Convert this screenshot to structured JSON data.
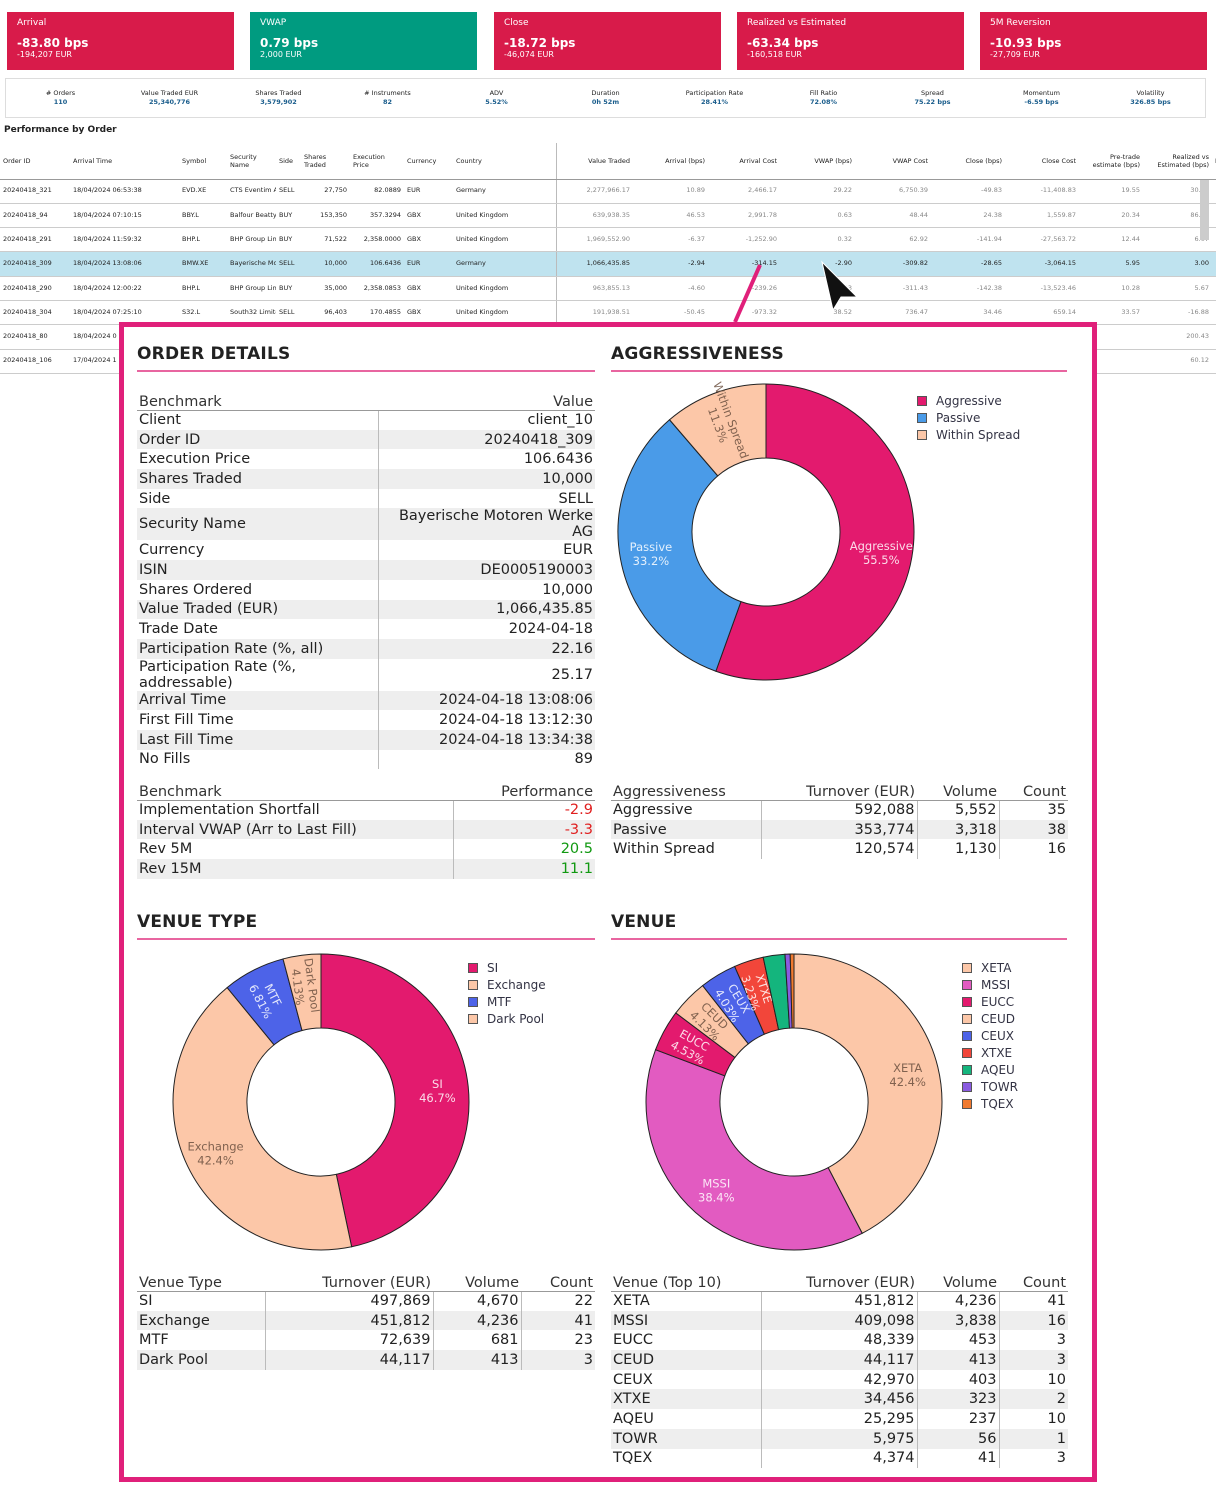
{
  "kpis": [
    {
      "title": "Arrival",
      "value": "-83.80 bps",
      "sub": "-194,207 EUR",
      "color": "#d81b4a"
    },
    {
      "title": "VWAP",
      "value": "0.79 bps",
      "sub": "2,000 EUR",
      "color": "#009b80"
    },
    {
      "title": "Close",
      "value": "-18.72 bps",
      "sub": "-46,074 EUR",
      "color": "#d81b4a"
    },
    {
      "title": "Realized vs Estimated",
      "value": "-63.34 bps",
      "sub": "-160,518 EUR",
      "color": "#d81b4a"
    },
    {
      "title": "5M Reversion",
      "value": "-10.93 bps",
      "sub": "-27,709 EUR",
      "color": "#d81b4a"
    }
  ],
  "stats": [
    {
      "label": "# Orders",
      "value": "110"
    },
    {
      "label": "Value Traded EUR",
      "value": "25,340,776"
    },
    {
      "label": "Shares Traded",
      "value": "3,579,902"
    },
    {
      "label": "# Instruments",
      "value": "82"
    },
    {
      "label": "ADV",
      "value": "5.52%"
    },
    {
      "label": "Duration",
      "value": "0h 52m"
    },
    {
      "label": "Participation Rate",
      "value": "28.41%"
    },
    {
      "label": "Fill Ratio",
      "value": "72.08%"
    },
    {
      "label": "Spread",
      "value": "75.22 bps"
    },
    {
      "label": "Momentum",
      "value": "-6.59 bps"
    },
    {
      "label": "Volatility",
      "value": "326.85 bps"
    }
  ],
  "perf_title": "Performance by Order",
  "order_table": {
    "headers": [
      "Order ID",
      "Arrival Time",
      "Symbol",
      "Security Name",
      "Side",
      "Shares Traded",
      "Execution Price",
      "Currency",
      "Country",
      "Value Traded",
      "Arrival (bps)",
      "Arrival Cost",
      "VWAP (bps)",
      "VWAP Cost",
      "Close (bps)",
      "Close Cost",
      "Pre-trade estimate (bps)",
      "Realized vs Estimated (bps)",
      "Es"
    ],
    "rows": [
      [
        "20240418_321",
        "18/04/2024 06:53:38",
        "EVD.XE",
        "CTS Eventim A..",
        "SELL",
        "27,750",
        "82.0889",
        "EUR",
        "Germany",
        "2,277,966.17",
        "10.89",
        "2,466.17",
        "29.22",
        "6,750.39",
        "-49.83",
        "-11,408.83",
        "19.55",
        "30.39",
        ""
      ],
      [
        "20240418_94",
        "18/04/2024 07:10:15",
        "BBY.L",
        "Balfour Beatty plc",
        "BUY",
        "153,350",
        "357.3294",
        "GBX",
        "United Kingdom",
        "639,938.35",
        "46.53",
        "2,991.78",
        "0.63",
        "48.44",
        "24.38",
        "1,559.87",
        "20.34",
        "86.87",
        ""
      ],
      [
        "20240418_291",
        "18/04/2024 11:59:32",
        "BHP.L",
        "BHP Group Limited",
        "BUY",
        "71,522",
        "2,358.0000",
        "GBX",
        "United Kingdom",
        "1,969,552.90",
        "-6.37",
        "-1,252.90",
        "0.32",
        "62.92",
        "-141.94",
        "-27,563.72",
        "12.44",
        "6.07",
        ""
      ],
      [
        "20240418_309",
        "18/04/2024 13:08:06",
        "BMW.XE",
        "Bayerische Motoren W..",
        "SELL",
        "10,000",
        "106.6436",
        "EUR",
        "Germany",
        "1,066,435.85",
        "-2.94",
        "-314.15",
        "-2.90",
        "-309.82",
        "-28.65",
        "-3,064.15",
        "5.95",
        "3.00",
        ""
      ],
      [
        "20240418_290",
        "18/04/2024 12:00:22",
        "BHP.L",
        "BHP Group Limited",
        "BUY",
        "35,000",
        "2,358.0853",
        "GBX",
        "United Kingdom",
        "963,855.13",
        "-4.60",
        "-239.26",
        "-3.23",
        "-311.43",
        "-142.38",
        "-13,523.46",
        "10.28",
        "5.67",
        ""
      ],
      [
        "20240418_304",
        "18/04/2024 07:25:10",
        "S32.L",
        "South32 Limited",
        "SELL",
        "96,403",
        "170.4855",
        "GBX",
        "United Kingdom",
        "191,938.51",
        "-50.45",
        "-973.32",
        "38.52",
        "736.47",
        "34.46",
        "659.14",
        "33.57",
        "-16.88",
        ""
      ],
      [
        "20240418_80",
        "18/04/2024 0",
        "",
        "",
        "",
        "",
        "",
        "",
        "",
        "",
        "",
        "",
        "",
        "",
        "",
        "",
        "",
        "200.43",
        ""
      ],
      [
        "20240418_106",
        "17/04/2024 1",
        "",
        "",
        "",
        "",
        "",
        "",
        "",
        "",
        "",
        "",
        "",
        "",
        "",
        "",
        "",
        "60.12",
        ""
      ]
    ]
  },
  "order_details": {
    "title": "ORDER DETAILS",
    "col1": "Benchmark",
    "col2": "Value",
    "rows": [
      [
        "Client",
        "client_10"
      ],
      [
        "Order ID",
        "20240418_309"
      ],
      [
        "Execution Price",
        "106.6436"
      ],
      [
        "Shares Traded",
        "10,000"
      ],
      [
        "Side",
        "SELL"
      ],
      [
        "Security Name",
        "Bayerische Motoren Werke AG"
      ],
      [
        "Currency",
        "EUR"
      ],
      [
        "ISIN",
        "DE0005190003"
      ],
      [
        "Shares Ordered",
        "10,000"
      ],
      [
        "Value Traded (EUR)",
        "1,066,435.85"
      ],
      [
        "Trade Date",
        "2024-04-18"
      ],
      [
        "Participation Rate (%, all)",
        "22.16"
      ],
      [
        "Participation Rate (%, addressable)",
        "25.17"
      ],
      [
        "Arrival Time",
        "2024-04-18 13:08:06"
      ],
      [
        "First Fill Time",
        "2024-04-18 13:12:30"
      ],
      [
        "Last Fill Time",
        "2024-04-18 13:34:38"
      ],
      [
        "No Fills",
        "89"
      ]
    ],
    "perf_col1": "Benchmark",
    "perf_col2": "Performance",
    "perf_rows": [
      {
        "label": "Implementation Shortfall",
        "value": "-2.9",
        "sign": "neg"
      },
      {
        "label": "Interval VWAP (Arr to Last Fill)",
        "value": "-3.3",
        "sign": "neg"
      },
      {
        "label": "Rev 5M",
        "value": "20.5",
        "sign": "pos"
      },
      {
        "label": "Rev 15M",
        "value": "11.1",
        "sign": "pos"
      }
    ]
  },
  "aggressiveness": {
    "title": "AGGRESSIVENESS",
    "headers": [
      "Aggressiveness",
      "Turnover (EUR)",
      "Volume",
      "Count"
    ],
    "rows": [
      [
        "Aggressive",
        "592,088",
        "5,552",
        "35"
      ],
      [
        "Passive",
        "353,774",
        "3,318",
        "38"
      ],
      [
        "Within Spread",
        "120,574",
        "1,130",
        "16"
      ]
    ]
  },
  "venue_type": {
    "title": "VENUE TYPE",
    "headers": [
      "Venue Type",
      "Turnover (EUR)",
      "Volume",
      "Count"
    ],
    "rows": [
      [
        "SI",
        "497,869",
        "4,670",
        "22"
      ],
      [
        "Exchange",
        "451,812",
        "4,236",
        "41"
      ],
      [
        "MTF",
        "72,639",
        "681",
        "23"
      ],
      [
        "Dark Pool",
        "44,117",
        "413",
        "3"
      ]
    ]
  },
  "venue": {
    "title": "VENUE",
    "headers": [
      "Venue (Top 10)",
      "Turnover (EUR)",
      "Volume",
      "Count"
    ],
    "rows": [
      [
        "XETA",
        "451,812",
        "4,236",
        "41"
      ],
      [
        "MSSI",
        "409,098",
        "3,838",
        "16"
      ],
      [
        "EUCC",
        "48,339",
        "453",
        "3"
      ],
      [
        "CEUD",
        "44,117",
        "413",
        "3"
      ],
      [
        "CEUX",
        "42,970",
        "403",
        "10"
      ],
      [
        "XTXE",
        "34,456",
        "323",
        "2"
      ],
      [
        "AQEU",
        "25,295",
        "237",
        "10"
      ],
      [
        "TOWR",
        "5,975",
        "56",
        "1"
      ],
      [
        "TQEX",
        "4,374",
        "41",
        "3"
      ]
    ]
  },
  "chart_data": [
    {
      "type": "pie",
      "title": "AGGRESSIVENESS",
      "categories": [
        "Aggressive",
        "Passive",
        "Within Spread"
      ],
      "values": [
        55.5,
        33.2,
        11.3
      ],
      "slice_labels": [
        "Aggressive\n55.5%",
        "Passive\n33.2%",
        "Within Spread\n11.3%"
      ],
      "colors": [
        "#e31a6e",
        "#4a9be8",
        "#fcc7a8"
      ],
      "legend": "top-right"
    },
    {
      "type": "pie",
      "title": "VENUE TYPE",
      "categories": [
        "SI",
        "Exchange",
        "MTF",
        "Dark Pool"
      ],
      "values": [
        46.7,
        42.4,
        6.81,
        4.13
      ],
      "slice_labels": [
        "SI\n46.7%",
        "Exchange\n42.4%",
        "MTF\n6.81%",
        "Dark Pool\n4.13%"
      ],
      "colors": [
        "#e31a6e",
        "#fcc7a8",
        "#4d63e8",
        "#fcc7a8"
      ],
      "legend": "top-right"
    },
    {
      "type": "pie",
      "title": "VENUE",
      "categories": [
        "XETA",
        "MSSI",
        "EUCC",
        "CEUD",
        "CEUX",
        "XTXE",
        "AQEU",
        "TOWR",
        "TQEX"
      ],
      "values": [
        42.4,
        38.4,
        4.53,
        4.13,
        4.03,
        3.23,
        2.37,
        0.56,
        0.41
      ],
      "slice_labels": [
        "XETA\n42.4%",
        "MSSI\n38.4%",
        "EUCC\n4.53%",
        "CEUD\n4.13%",
        "CEUX\n4.03%",
        "XTXE\n3.23%",
        "",
        "",
        ""
      ],
      "colors": [
        "#fcc7a8",
        "#e25bc1",
        "#e31a6e",
        "#fcc7a8",
        "#4d63e8",
        "#f2463a",
        "#14b57d",
        "#8a5be0",
        "#f07a2f"
      ],
      "legend": "top-right"
    }
  ]
}
